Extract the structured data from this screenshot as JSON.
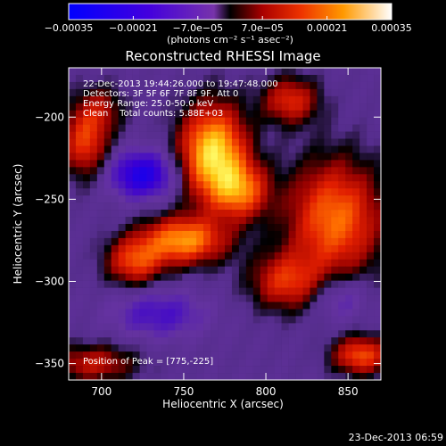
{
  "chart_data": {
    "type": "heatmap",
    "title": "Reconstructed RHESSI Image",
    "xlabel": "Heliocentric X (arcsec)",
    "ylabel": "Heliocentric Y (arcsec)",
    "xlim": [
      680,
      870
    ],
    "ylim": [
      -360,
      -170
    ],
    "xticks": [
      700,
      750,
      800,
      850
    ],
    "yticks": [
      -200,
      -250,
      -300,
      -350
    ],
    "grid": false,
    "colorbar": {
      "label": "(photons cm⁻² s⁻¹ asec⁻²)",
      "range": [
        -0.00035,
        0.00035
      ],
      "ticks": [
        "-0.00035",
        "-0.00021",
        "-7.0e-05",
        "7.0e-05",
        "0.00021",
        "0.00035"
      ]
    },
    "annotations": {
      "time": "22-Dec-2013 19:44:26.000 to 19:47:48.000",
      "detectors": "Detectors: 3F 5F 6F 7F 8F 9F, Att 0",
      "energy": "Energy Range: 25.0-50.0 keV",
      "clean": "Clean    Total counts: 5.88E+03",
      "peak": "Position of Peak = [775,-225]"
    },
    "footer_timestamp": "23-Dec-2013 06:59",
    "sources": [
      {
        "x": 768,
        "y": -222,
        "value": 0.00035,
        "sx": 14,
        "sy": 20
      },
      {
        "x": 750,
        "y": -275,
        "value": 0.00028,
        "sx": 18,
        "sy": 10
      },
      {
        "x": 720,
        "y": -288,
        "value": 0.0002,
        "sx": 12,
        "sy": 10
      },
      {
        "x": 842,
        "y": -262,
        "value": 0.00025,
        "sx": 20,
        "sy": 25
      },
      {
        "x": 812,
        "y": -300,
        "value": 0.00018,
        "sx": 15,
        "sy": 12
      },
      {
        "x": 815,
        "y": -190,
        "value": 0.00018,
        "sx": 12,
        "sy": 10
      },
      {
        "x": 690,
        "y": -215,
        "value": 0.0002,
        "sx": 10,
        "sy": 15
      },
      {
        "x": 700,
        "y": -195,
        "value": 0.0001,
        "sx": 10,
        "sy": 10
      },
      {
        "x": 858,
        "y": -345,
        "value": 0.00022,
        "sx": 12,
        "sy": 8
      },
      {
        "x": 695,
        "y": -350,
        "value": 0.00015,
        "sx": 18,
        "sy": 8
      },
      {
        "x": 785,
        "y": -245,
        "value": 0.00022,
        "sx": 12,
        "sy": 12
      },
      {
        "x": 725,
        "y": -235,
        "value": -0.00022,
        "sx": 14,
        "sy": 10
      },
      {
        "x": 735,
        "y": -320,
        "value": -0.00012,
        "sx": 20,
        "sy": 10
      },
      {
        "x": 845,
        "y": -310,
        "value": -0.0001,
        "sx": 12,
        "sy": 10
      }
    ]
  }
}
